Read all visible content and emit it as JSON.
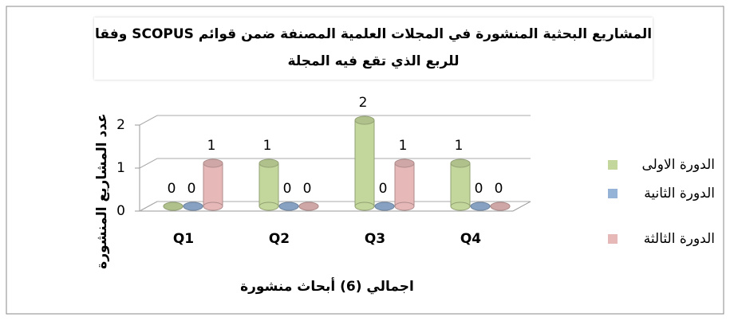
{
  "chart_data": {
    "type": "bar3d",
    "title": "المشاريع البحثية المنشورة في المجلات العلمية المصنفة ضمن قوائم SCOPUS وفقا للربع الذي تقع فيه المجلة",
    "y_label": "عدد المشاريع المنشورة",
    "x_label": "اجمالي (6) أبحاث منشورة",
    "categories": [
      "Q1",
      "Q2",
      "Q3",
      "Q4"
    ],
    "series": [
      {
        "name": "الدورة الاولى",
        "color": "#c3d69b",
        "values": [
          0,
          1,
          2,
          1
        ]
      },
      {
        "name": "الدورة الثانية",
        "color": "#95b3d7",
        "values": [
          0,
          0,
          0,
          0
        ]
      },
      {
        "name": "الدورة الثالثة",
        "color": "#e6b9b8",
        "values": [
          1,
          0,
          1,
          0
        ]
      }
    ],
    "ylim": [
      0,
      2
    ],
    "yticks": [
      0,
      1,
      2
    ],
    "grid": true,
    "legend": "right"
  }
}
